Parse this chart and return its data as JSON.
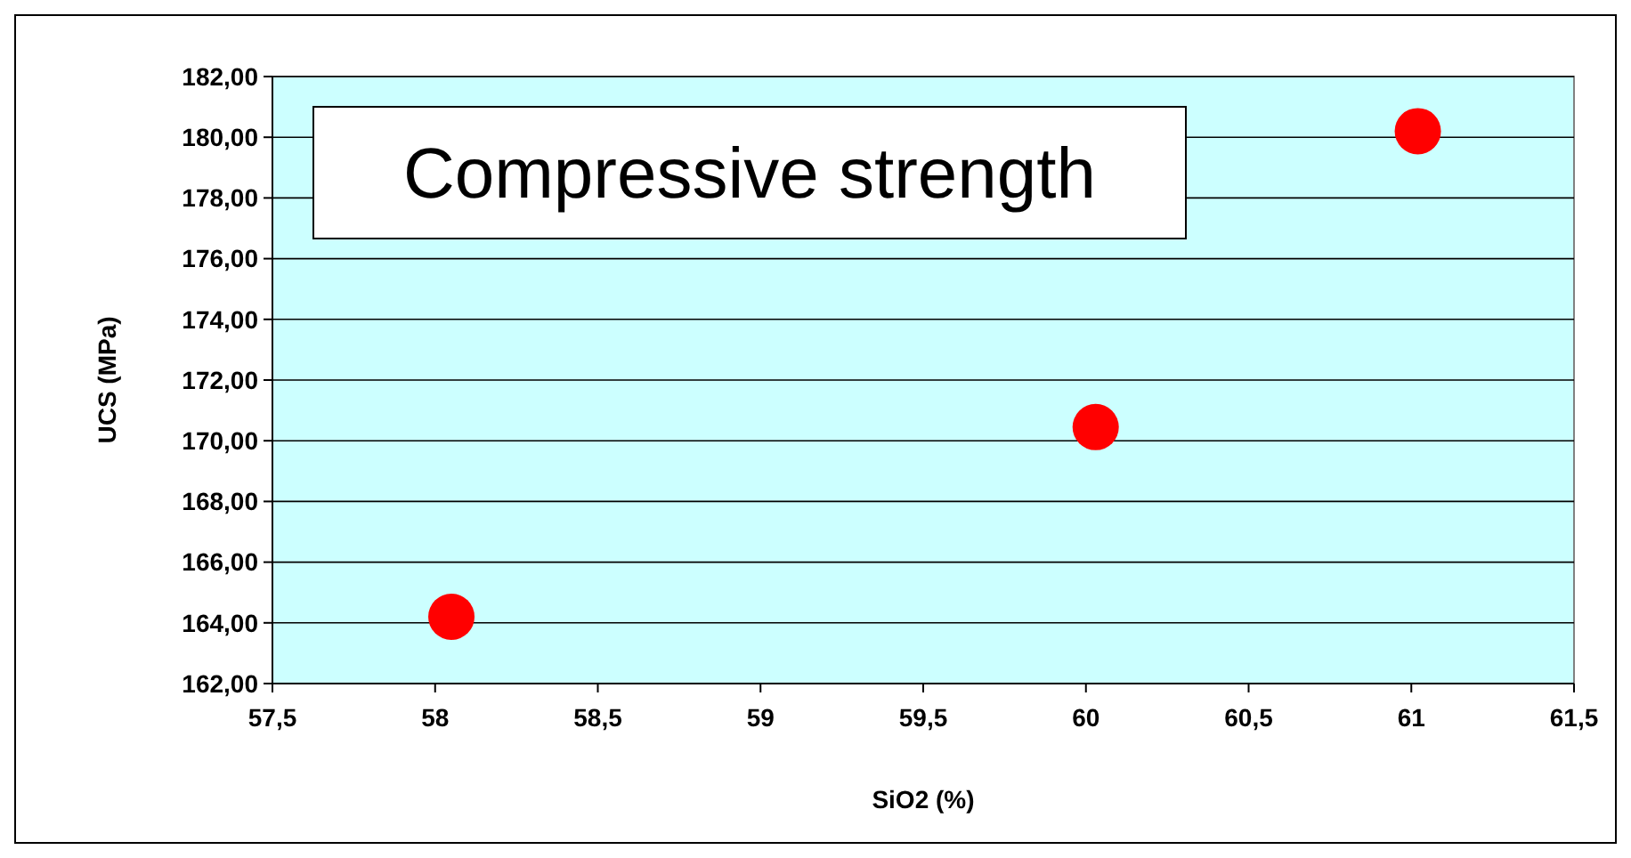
{
  "chart_data": {
    "type": "scatter",
    "title": "Compressive strength",
    "xlabel": "SiO2 (%)",
    "ylabel": "UCS (MPa)",
    "x": [
      58.05,
      60.03,
      61.02
    ],
    "series": [
      {
        "color": "#ff0000",
        "values": [
          164.2,
          170.45,
          180.2
        ]
      }
    ],
    "xlim": [
      57.5,
      61.5
    ],
    "ylim": [
      162,
      182
    ],
    "xticks": [
      {
        "value": 57.5,
        "label": "57,5"
      },
      58,
      {
        "value": 58.5,
        "label": "58,5"
      },
      59,
      {
        "value": 59.5,
        "label": "59,5"
      },
      60,
      {
        "value": 60.5,
        "label": "60,5"
      },
      61,
      {
        "value": 61.5,
        "label": "61,5"
      }
    ],
    "yticks": [
      {
        "value": 162,
        "label": "162,00"
      },
      {
        "value": 164,
        "label": "164,00"
      },
      {
        "value": 166,
        "label": "166,00"
      },
      {
        "value": 168,
        "label": "168,00"
      },
      {
        "value": 170,
        "label": "170,00"
      },
      {
        "value": 172,
        "label": "172,00"
      },
      {
        "value": 174,
        "label": "174,00"
      },
      {
        "value": 176,
        "label": "176,00"
      },
      {
        "value": 178,
        "label": "178,00"
      },
      {
        "value": 180,
        "label": "180,00"
      },
      {
        "value": 182,
        "label": "182,00"
      }
    ],
    "grid": "y",
    "marker": "circle"
  }
}
